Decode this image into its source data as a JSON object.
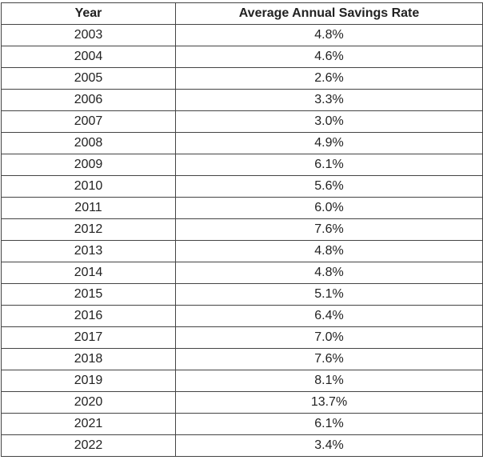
{
  "table": {
    "headers": {
      "year": "Year",
      "rate": "Average Annual Savings Rate"
    },
    "rows": [
      {
        "year": "2003",
        "rate": "4.8%"
      },
      {
        "year": "2004",
        "rate": "4.6%"
      },
      {
        "year": "2005",
        "rate": "2.6%"
      },
      {
        "year": "2006",
        "rate": "3.3%"
      },
      {
        "year": "2007",
        "rate": "3.0%"
      },
      {
        "year": "2008",
        "rate": "4.9%"
      },
      {
        "year": "2009",
        "rate": "6.1%"
      },
      {
        "year": "2010",
        "rate": "5.6%"
      },
      {
        "year": "2011",
        "rate": "6.0%"
      },
      {
        "year": "2012",
        "rate": "7.6%"
      },
      {
        "year": "2013",
        "rate": "4.8%"
      },
      {
        "year": "2014",
        "rate": "4.8%"
      },
      {
        "year": "2015",
        "rate": "5.1%"
      },
      {
        "year": "2016",
        "rate": "6.4%"
      },
      {
        "year": "2017",
        "rate": "7.0%"
      },
      {
        "year": "2018",
        "rate": "7.6%"
      },
      {
        "year": "2019",
        "rate": "8.1%"
      },
      {
        "year": "2020",
        "rate": "13.7%"
      },
      {
        "year": "2021",
        "rate": "6.1%"
      },
      {
        "year": "2022",
        "rate": "3.4%"
      }
    ]
  }
}
